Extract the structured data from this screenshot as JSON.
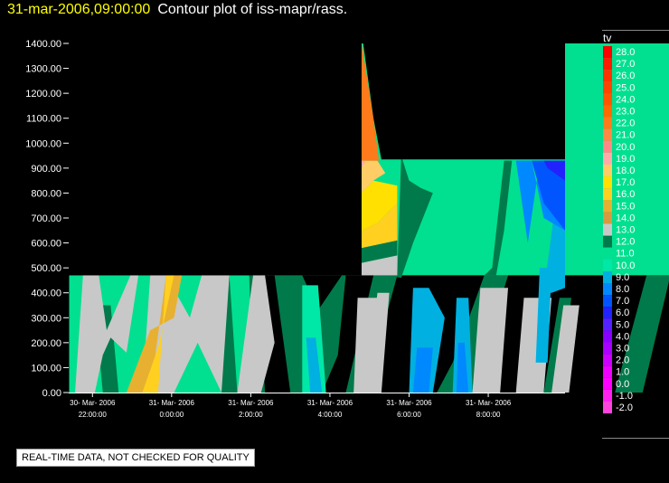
{
  "header": {
    "timestamp": "31-mar-2006,09:00:00",
    "title": "Contour plot of iss-mapr/rass."
  },
  "notice": "REAL-TIME DATA, NOT CHECKED FOR QUALITY",
  "colors": {
    "background": "#000000",
    "timestamp": "#ffff00",
    "text": "#ffffff"
  },
  "chart_data": {
    "type": "heatmap",
    "title": "Contour plot of iss-mapr/rass.",
    "xlabel": "",
    "ylabel": "",
    "ylim": [
      0,
      1400
    ],
    "y_ticks": [
      "0.00",
      "100.00",
      "200.00",
      "300.00",
      "400.00",
      "500.00",
      "600.00",
      "700.00",
      "800.00",
      "900.00",
      "1000.00",
      "1100.00",
      "1200.00",
      "1300.00",
      "1400.00"
    ],
    "x_ticks": [
      {
        "date": "30- Mar- 2006",
        "time": "22:00:00"
      },
      {
        "date": "31- Mar- 2006",
        "time": "0:00:00"
      },
      {
        "date": "31- Mar- 2006",
        "time": "2:00:00"
      },
      {
        "date": "31- Mar- 2006",
        "time": "4:00:00"
      },
      {
        "date": "31- Mar- 2006",
        "time": "6:00:00"
      },
      {
        "date": "31- Mar- 2006",
        "time": "8:00:00"
      }
    ],
    "colorbar": {
      "label": "tv",
      "levels": [
        "28.0",
        "27.0",
        "26.0",
        "25.0",
        "24.0",
        "23.0",
        "22.0",
        "21.0",
        "20.0",
        "19.0",
        "18.0",
        "17.0",
        "16.0",
        "15.0",
        "14.0",
        "13.0",
        "12.0",
        "11.0",
        "10.0",
        "9.0",
        "8.0",
        "7.0",
        "6.0",
        "5.0",
        "4.0",
        "3.0",
        "2.0",
        "1.0",
        "0.0",
        "-1.0",
        "-2.0"
      ],
      "colors": [
        "#ff0000",
        "#ff1a00",
        "#ff3300",
        "#ff4400",
        "#ff5500",
        "#ff6a00",
        "#ff7a1a",
        "#ff8844",
        "#ff8888",
        "#ffaaaa",
        "#ffcc66",
        "#ffe000",
        "#ffd020",
        "#e8b030",
        "#d89a40",
        "#c8c8c8",
        "#007a4a",
        "#00e090",
        "#00e8a8",
        "#00b0e0",
        "#0088ff",
        "#0055ff",
        "#2222ff",
        "#5522ff",
        "#8800ff",
        "#aa00ff",
        "#cc00ff",
        "#ee00ff",
        "#ff00ff",
        "#ff22ee",
        "#ff44dd"
      ]
    },
    "regions": [
      {
        "value": "11.0",
        "t": [
          0,
          2.43,
          2.43,
          9.43,
          9.43,
          0
        ],
        "h": [
          0,
          0,
          1400,
          1400,
          470,
          470
        ]
      },
      {
        "value": "12.0",
        "t": [
          0.43,
          0.63,
          0.53,
          0.33
        ],
        "h": [
          0,
          0,
          350,
          350
        ]
      },
      {
        "value": "12.0",
        "t": [
          1.93,
          2.13,
          2.03,
          1.83
        ],
        "h": [
          0,
          0,
          470,
          470
        ]
      },
      {
        "value": "12.0",
        "t": [
          2.33,
          2.48,
          2.4,
          2.28
        ],
        "h": [
          0,
          0,
          470,
          470
        ]
      },
      {
        "value": "12.0",
        "t": [
          2.8,
          3.2,
          3.4,
          3.5,
          3.45,
          3.15,
          2.95,
          2.6
        ],
        "h": [
          0,
          0,
          150,
          470,
          470,
          330,
          470,
          470
        ]
      },
      {
        "value": "12.0",
        "t": [
          3.5,
          3.75,
          4.15,
          3.85
        ],
        "h": [
          0,
          0,
          470,
          470
        ]
      },
      {
        "value": "12.0",
        "t": [
          4.05,
          4.2,
          4.35,
          4.6,
          4.45,
          4.3,
          4.2,
          4.15
        ],
        "h": [
          470,
          460,
          600,
          800,
          820,
          850,
          950,
          470
        ]
      },
      {
        "value": "12.0",
        "t": [
          4.65,
          5.1,
          5.55,
          5.25,
          4.85
        ],
        "h": [
          0,
          0,
          470,
          470,
          120
        ]
      },
      {
        "value": "12.0",
        "t": [
          5.25,
          5.35,
          5.5,
          5.6,
          5.5,
          5.4
        ],
        "h": [
          470,
          500,
          930,
          930,
          650,
          470
        ]
      },
      {
        "value": "12.0",
        "t": [
          6.9,
          7.25,
          7.6,
          7.3
        ],
        "h": [
          0,
          0,
          470,
          470
        ]
      },
      {
        "value": "12.0",
        "t": [
          6.0,
          6.2,
          6.35,
          6.2
        ],
        "h": [
          0,
          0,
          380,
          380
        ]
      },
      {
        "value": "10.0",
        "t": [
          2.95,
          3.25,
          3.15,
          2.95
        ],
        "h": [
          0,
          0,
          430,
          430
        ]
      },
      {
        "value": "9.0",
        "t": [
          3.05,
          3.2,
          3.12,
          3.0
        ],
        "h": [
          0,
          0,
          220,
          220
        ]
      },
      {
        "value": "13.0",
        "t": [
          0.08,
          0.33,
          0.43,
          0.53,
          0.73,
          0.88,
          0.78,
          0.48,
          0.38,
          0.18
        ],
        "h": [
          0,
          0,
          150,
          220,
          160,
          470,
          470,
          250,
          470,
          470
        ]
      },
      {
        "value": "13.0",
        "t": [
          0.93,
          1.33,
          1.63,
          1.93,
          2.03,
          1.68,
          1.53,
          1.23,
          1.03
        ],
        "h": [
          0,
          0,
          200,
          0,
          470,
          470,
          300,
          470,
          470
        ]
      },
      {
        "value": "13.0",
        "t": [
          2.13,
          2.43,
          2.6,
          2.48,
          2.33
        ],
        "h": [
          0,
          0,
          200,
          470,
          470
        ]
      },
      {
        "value": "13.0",
        "t": [
          3.75,
          3.95,
          4.05,
          3.9
        ],
        "h": [
          0,
          0,
          400,
          400
        ]
      },
      {
        "value": "13.0",
        "t": [
          6.1,
          6.32,
          6.45,
          6.25
        ],
        "h": [
          0,
          0,
          350,
          350
        ]
      },
      {
        "value": "15.0",
        "t": [
          0.73,
          1.03,
          1.23,
          1.43,
          1.33,
          1.03
        ],
        "h": [
          0,
          0,
          470,
          470,
          300,
          250
        ]
      },
      {
        "value": "16.0",
        "t": [
          0.93,
          1.13,
          1.23,
          1.33,
          1.13
        ],
        "h": [
          0,
          0,
          470,
          470,
          180
        ]
      },
      {
        "value": "15.0",
        "t": [
          3.6,
          3.8,
          3.85,
          3.7
        ],
        "h": [
          0,
          0,
          280,
          280
        ]
      },
      {
        "value": "16.0",
        "t": [
          3.65,
          3.78,
          3.8,
          3.72
        ],
        "h": [
          0,
          0,
          150,
          150
        ]
      },
      {
        "value": "15.0",
        "t": [
          5.1,
          5.4,
          5.5,
          5.2
        ],
        "h": [
          0,
          0,
          330,
          330
        ]
      },
      {
        "value": "16.0",
        "t": [
          5.15,
          5.35,
          5.4,
          5.2
        ],
        "h": [
          0,
          0,
          230,
          230
        ]
      },
      {
        "value": "17.0",
        "t": [
          5.2,
          5.3,
          5.33,
          5.22
        ],
        "h": [
          0,
          0,
          100,
          100
        ]
      },
      {
        "value": "15.0",
        "t": [
          5.7,
          5.95,
          6.05,
          5.8
        ],
        "h": [
          0,
          0,
          290,
          290
        ]
      },
      {
        "value": "16.0",
        "t": [
          5.75,
          5.92,
          5.98,
          5.82
        ],
        "h": [
          0,
          0,
          190,
          190
        ]
      },
      {
        "value": "13.0",
        "t": [
          3.6,
          3.85,
          3.9,
          3.65
        ],
        "h": [
          0,
          0,
          380,
          380
        ]
      },
      {
        "value": "13.0",
        "t": [
          5.1,
          5.45,
          5.55,
          5.2
        ],
        "h": [
          0,
          0,
          420,
          420
        ]
      },
      {
        "value": "13.0",
        "t": [
          5.65,
          6.0,
          6.1,
          5.75
        ],
        "h": [
          0,
          0,
          380,
          380
        ]
      },
      {
        "value": "9.0",
        "t": [
          4.3,
          4.6,
          4.75,
          4.55,
          4.35
        ],
        "h": [
          0,
          0,
          300,
          420,
          420
        ]
      },
      {
        "value": "8.0",
        "t": [
          4.35,
          4.55,
          4.6,
          4.4
        ],
        "h": [
          0,
          0,
          180,
          180
        ]
      },
      {
        "value": "9.0",
        "t": [
          4.85,
          5.1,
          5.05,
          4.9
        ],
        "h": [
          0,
          0,
          380,
          380
        ]
      },
      {
        "value": "8.0",
        "t": [
          4.9,
          5.05,
          5.0,
          4.92
        ],
        "h": [
          0,
          0,
          200,
          200
        ]
      },
      {
        "value": "9.0",
        "t": [
          5.9,
          6.05,
          6.1,
          5.95
        ],
        "h": [
          120,
          120,
          500,
          500
        ]
      },
      {
        "value": "9.0",
        "t": [
          6.0,
          6.1,
          6.27,
          6.27,
          6.15
        ],
        "h": [
          400,
          400,
          420,
          760,
          760
        ]
      },
      {
        "value": "8.0",
        "t": [
          5.65,
          5.85,
          6.0,
          6.27,
          6.27,
          5.95,
          5.8
        ],
        "h": [
          930,
          930,
          700,
          650,
          930,
          930,
          600
        ]
      },
      {
        "value": "7.0",
        "t": [
          5.85,
          6.05,
          6.27,
          6.27,
          6.0
        ],
        "h": [
          930,
          930,
          900,
          650,
          760
        ]
      },
      {
        "value": "6.0",
        "t": [
          6.0,
          6.27,
          6.27,
          6.05
        ],
        "h": [
          930,
          930,
          850,
          900
        ]
      },
      {
        "value": "13.0",
        "t": [
          3.7,
          4.15,
          4.15,
          3.7
        ],
        "h": [
          470,
          470,
          550,
          520
        ]
      },
      {
        "value": "12.0",
        "t": [
          3.7,
          4.15,
          4.15,
          3.7
        ],
        "h": [
          520,
          550,
          610,
          580
        ]
      },
      {
        "value": "16.0",
        "t": [
          3.7,
          4.15,
          4.15,
          3.9,
          3.7
        ],
        "h": [
          580,
          610,
          760,
          680,
          650
        ]
      },
      {
        "value": "17.0",
        "t": [
          3.7,
          3.9,
          4.15,
          4.15,
          3.85,
          3.7
        ],
        "h": [
          650,
          680,
          760,
          830,
          850,
          800
        ]
      },
      {
        "value": "18.0",
        "t": [
          3.7,
          3.85,
          4.0,
          3.9,
          3.7
        ],
        "h": [
          800,
          850,
          880,
          930,
          930
        ]
      },
      {
        "value": "19.0",
        "t": [
          3.7,
          3.75,
          3.7
        ],
        "h": [
          900,
          930,
          930
        ]
      },
      {
        "value": "22.0",
        "t": [
          3.7,
          3.8,
          3.92,
          3.85,
          3.7
        ],
        "h": [
          930,
          930,
          930,
          1100,
          1400
        ]
      }
    ],
    "x_range": [
      0,
      6.27
    ],
    "x_tick_positions": [
      0.3,
      1.3,
      2.3,
      3.3,
      4.3,
      5.3
    ]
  }
}
